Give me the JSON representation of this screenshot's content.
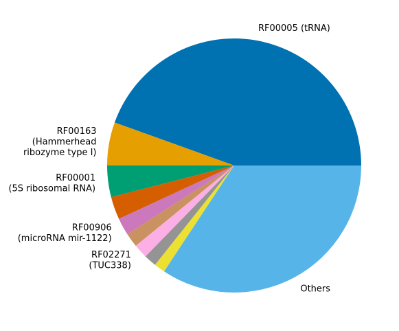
{
  "chart_data": {
    "type": "pie",
    "title": "",
    "start_angle_deg": 0,
    "direction": "counterclockwise",
    "slices": [
      {
        "label": "RF00005 (tRNA)",
        "label_lines": [
          "RF00005 (tRNA)"
        ],
        "value": 44.5,
        "color": "#0072b2"
      },
      {
        "label": "RF00163 (Hammerhead ribozyme type I)",
        "label_lines": [
          "RF00163",
          "(Hammerhead",
          "ribozyme type I)"
        ],
        "value": 5.5,
        "color": "#e69f00"
      },
      {
        "label": "RF00001 (5S ribosomal RNA)",
        "label_lines": [
          "RF00001",
          "(5S ribosomal RNA)"
        ],
        "value": 4.0,
        "color": "#009e73"
      },
      {
        "label": "",
        "label_lines": [],
        "value": 2.9,
        "color": "#d55e00"
      },
      {
        "label": "RF00906 (microRNA mir-1122)",
        "label_lines": [
          "RF00906",
          "(microRNA mir-1122)"
        ],
        "value": 2.2,
        "color": "#cc78bc"
      },
      {
        "label": "",
        "label_lines": [],
        "value": 1.8,
        "color": "#ca9161"
      },
      {
        "label": "RF02271 (TUC338)",
        "label_lines": [
          "RF02271",
          "(TUC338)"
        ],
        "value": 1.8,
        "color": "#fbafe4"
      },
      {
        "label": "",
        "label_lines": [],
        "value": 1.6,
        "color": "#949494"
      },
      {
        "label": "",
        "label_lines": [],
        "value": 1.4,
        "color": "#ece133"
      },
      {
        "label": "Others",
        "label_lines": [
          "Others"
        ],
        "value": 34.3,
        "color": "#56b4e9"
      }
    ]
  }
}
